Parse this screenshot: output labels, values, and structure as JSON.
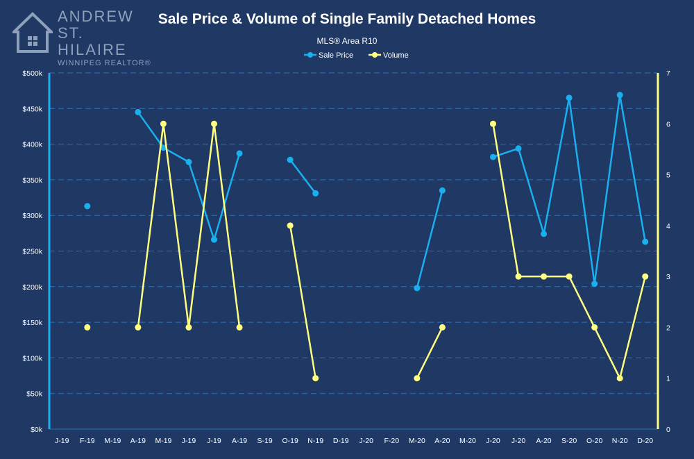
{
  "logo": {
    "line1": "ANDREW",
    "line2": "ST. HILAIRE",
    "line3": "WINNIPEG REALTOR®",
    "icon": "house-icon"
  },
  "chart_data": {
    "type": "line",
    "title": "Sale Price & Volume of Single Family Detached Homes",
    "subtitle": "MLS® Area R10",
    "categories": [
      "J-19",
      "F-19",
      "M-19",
      "A-19",
      "M-19",
      "J-19",
      "J-19",
      "A-19",
      "S-19",
      "O-19",
      "N-19",
      "D-19",
      "J-20",
      "F-20",
      "M-20",
      "A-20",
      "M-20",
      "J-20",
      "J-20",
      "A-20",
      "S-20",
      "O-20",
      "N-20",
      "D-20"
    ],
    "series": [
      {
        "name": "Sale Price",
        "axis": "left",
        "color": "#1ab0f0",
        "values": [
          null,
          313000,
          null,
          445000,
          395000,
          375000,
          266000,
          387000,
          null,
          378000,
          331000,
          null,
          null,
          null,
          198000,
          335000,
          null,
          382000,
          394000,
          274000,
          465000,
          204000,
          469000,
          263000
        ]
      },
      {
        "name": "Volume",
        "axis": "right",
        "color": "#ffff80",
        "values": [
          null,
          2,
          null,
          2,
          6,
          2,
          6,
          2,
          null,
          4,
          1,
          null,
          null,
          null,
          1,
          2,
          null,
          6,
          3,
          3,
          3,
          2,
          1,
          3
        ]
      }
    ],
    "y_left": {
      "min": 0,
      "max": 500000,
      "step": 50000,
      "tick_labels": [
        "$0k",
        "$50k",
        "$100k",
        "$150k",
        "$200k",
        "$250k",
        "$300k",
        "$350k",
        "$400k",
        "$450k",
        "$500k"
      ]
    },
    "y_right": {
      "min": 0,
      "max": 7,
      "step": 1,
      "tick_labels": [
        "0",
        "1",
        "2",
        "3",
        "4",
        "5",
        "6",
        "7"
      ]
    },
    "grid": true,
    "legend_position": "top-center",
    "colors": {
      "background": "#1f3864",
      "grid": "#2e74b5",
      "left_axis": "#1ab0f0",
      "right_axis": "#ffff80"
    }
  }
}
